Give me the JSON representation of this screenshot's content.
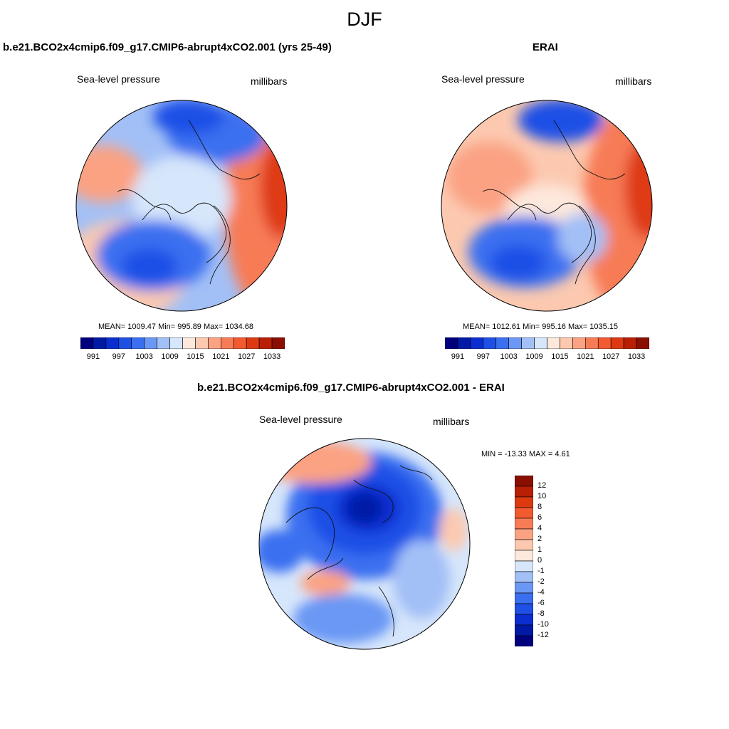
{
  "page": {
    "title": "DJF"
  },
  "palette": {
    "blues": [
      "#00007f",
      "#001aa6",
      "#0a2ed0",
      "#1e50e6",
      "#3a70f0",
      "#6b98f4",
      "#a3c0f6",
      "#d6e6fb"
    ],
    "reds": [
      "#fde8dc",
      "#fcc9b0",
      "#fba283",
      "#f77c56",
      "#f25a30",
      "#de3a12",
      "#b81f04",
      "#8b0f00"
    ]
  },
  "panels": [
    {
      "title": "b.e21.BCO2x4cmip6.f09_g17.CMIP6-abrupt4xCO2.001 (yrs 25-49)",
      "left_label": "Sea-level pressure",
      "right_label": "millibars",
      "stats": "MEAN= 1009.47  Min= 995.89  Max= 1034.68",
      "colorbar_ticks": [
        "991",
        "997",
        "1003",
        "1009",
        "1015",
        "1021",
        "1027",
        "1033"
      ]
    },
    {
      "title": "ERAI",
      "left_label": "Sea-level pressure",
      "right_label": "millibars",
      "stats": "MEAN= 1012.61  Min= 995.16  Max= 1035.15",
      "colorbar_ticks": [
        "991",
        "997",
        "1003",
        "1009",
        "1015",
        "1021",
        "1027",
        "1033"
      ]
    },
    {
      "title": "b.e21.BCO2x4cmip6.f09_g17.CMIP6-abrupt4xCO2.001 - ERAI",
      "left_label": "Sea-level pressure",
      "right_label": "millibars",
      "stats": "MIN = -13.33 MAX =   4.61",
      "colorbar_ticks": [
        "12",
        "10",
        "8",
        "6",
        "4",
        "2",
        "1",
        "0",
        "-1",
        "-2",
        "-4",
        "-6",
        "-8",
        "-10",
        "-12"
      ]
    }
  ]
}
